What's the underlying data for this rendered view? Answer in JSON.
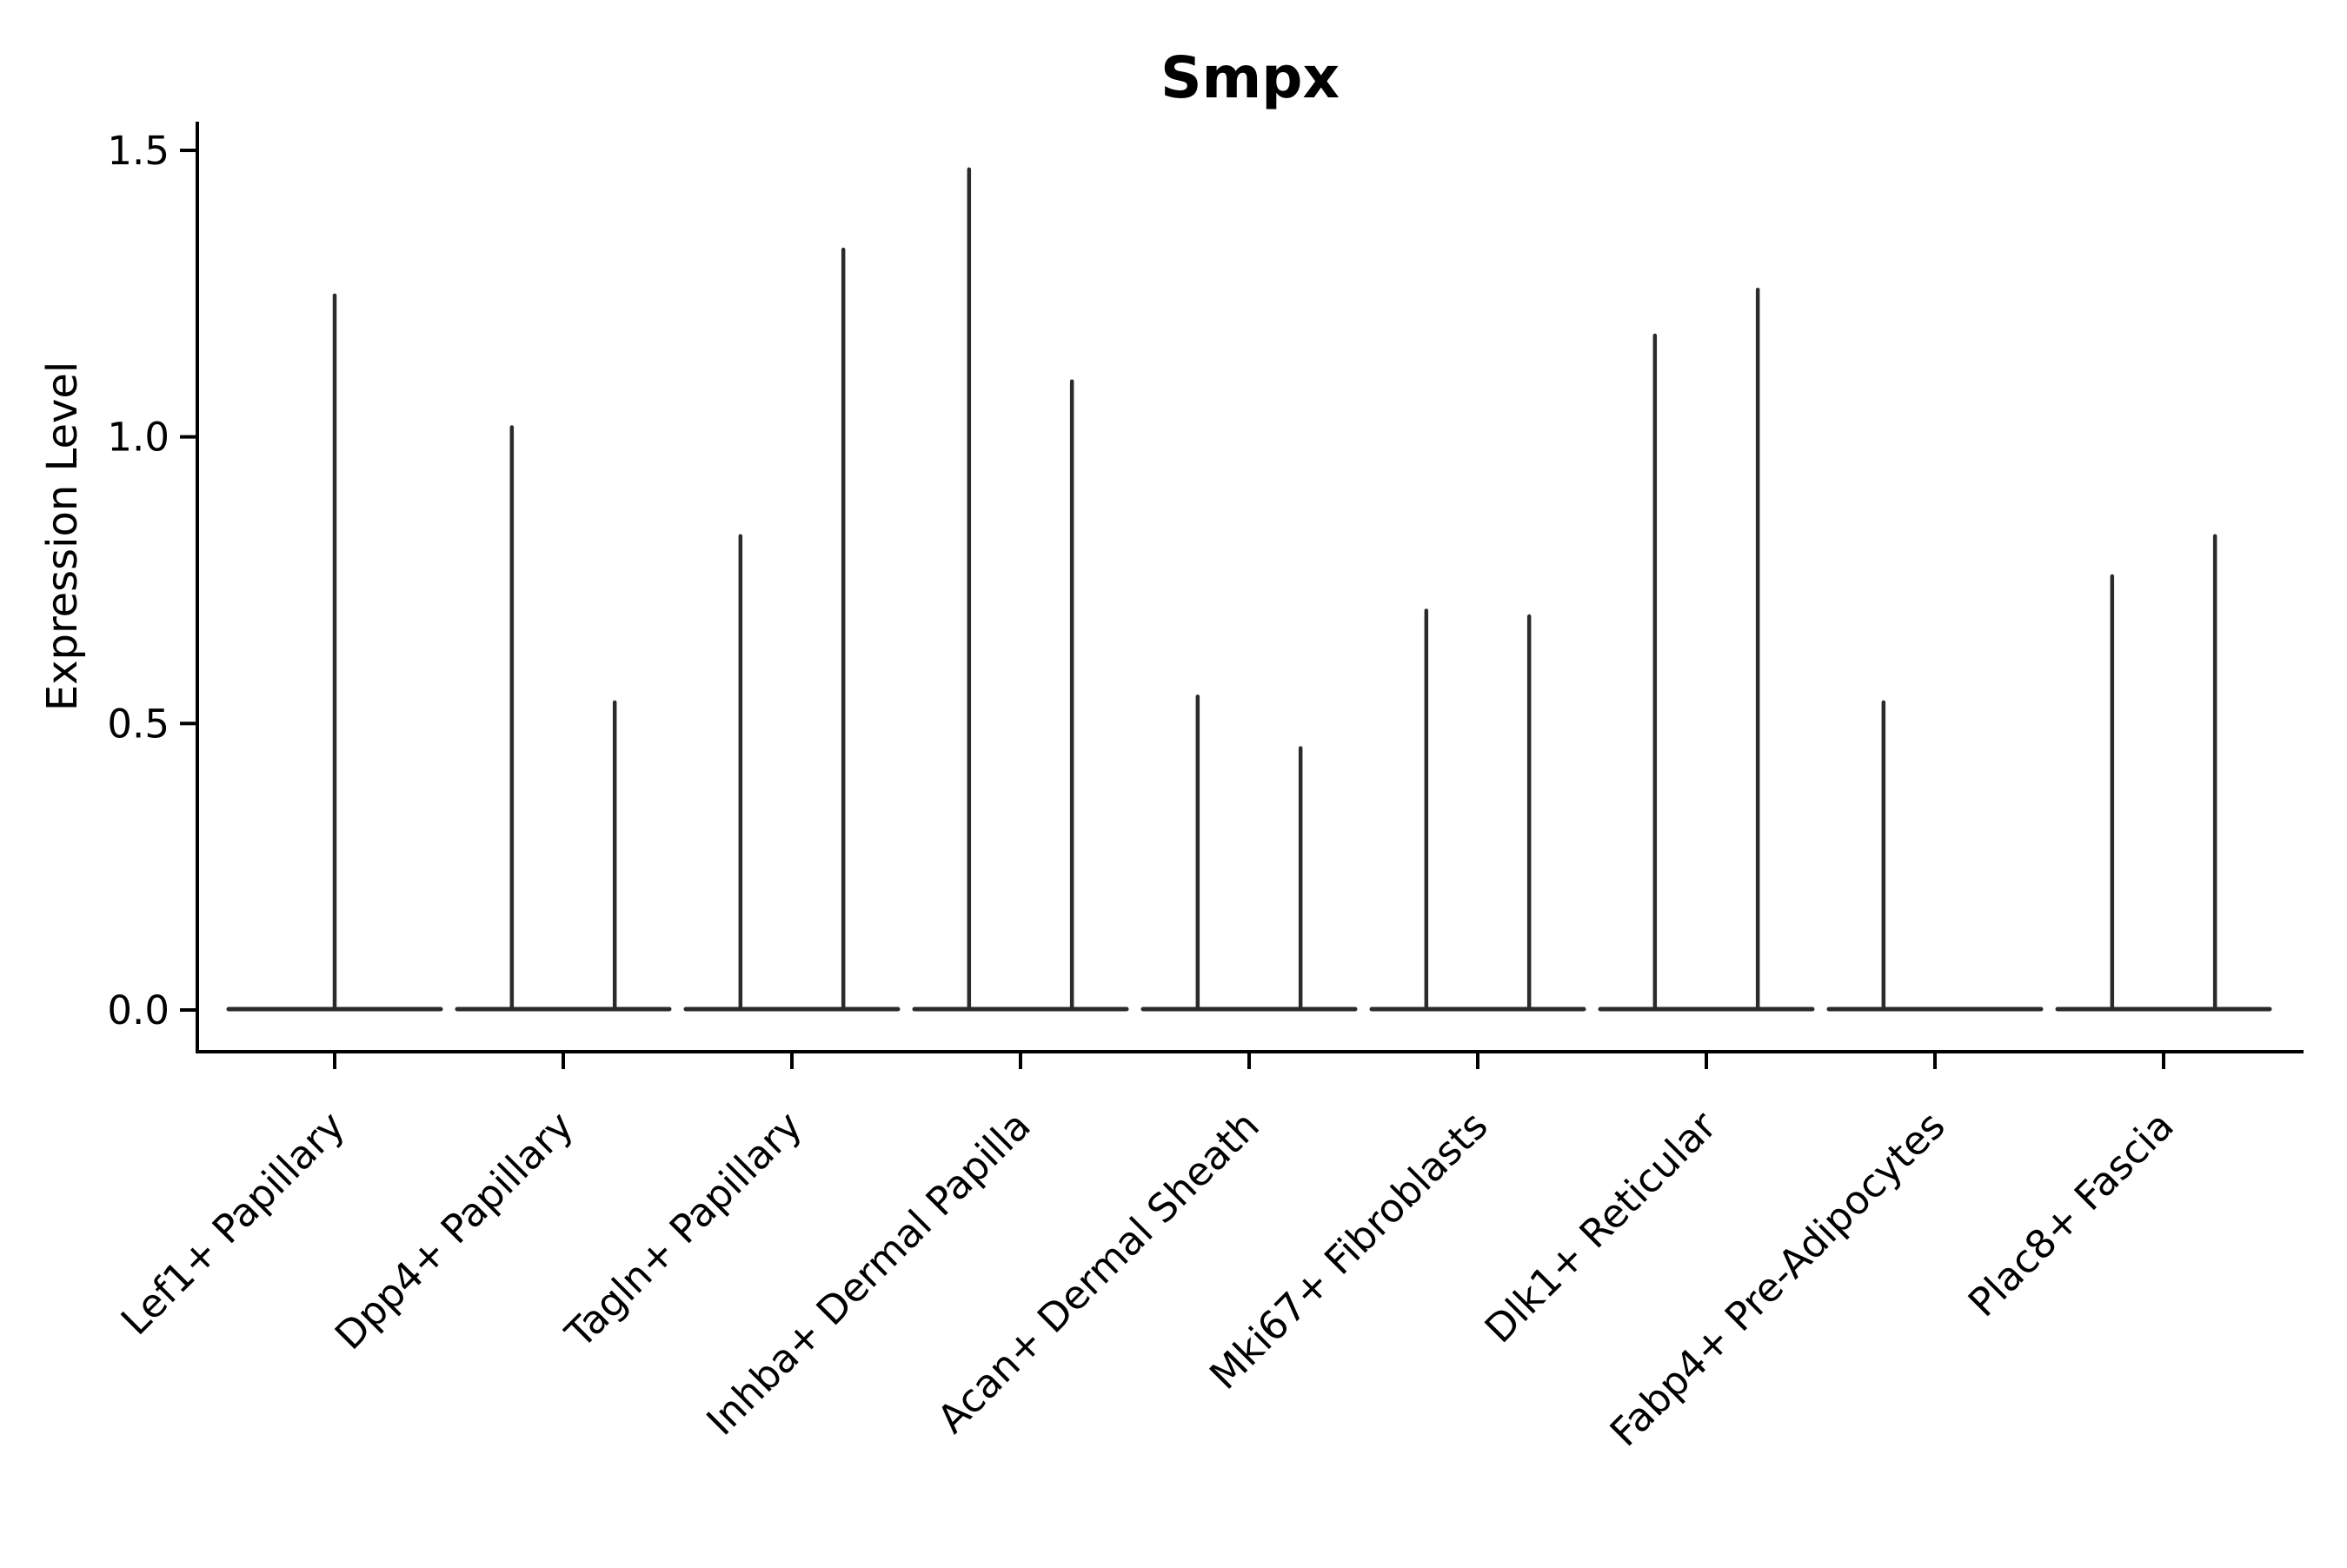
{
  "chart_data": {
    "type": "violin",
    "title": "Smpx",
    "ylabel": "Expression Level",
    "xlabel": "",
    "ylim": [
      -0.07,
      1.55
    ],
    "yticks": [
      0.0,
      0.5,
      1.0,
      1.5
    ],
    "ytick_labels": [
      "0.0",
      "0.5",
      "1.0",
      "1.5"
    ],
    "grid": false,
    "legend": null,
    "categories": [
      "Lef1+ Papillary",
      "Dpp4+ Papillary",
      "Tagln+ Papillary",
      "Inhba+ Dermal Papilla",
      "Acan+ Dermal Sheath",
      "Mki67+ Fibroblasts",
      "Dlk1+ Reticular",
      "Fabp4+ Pre-Adipocytes",
      "Plac8+ Fascia"
    ],
    "violins": [
      {
        "category": "Lef1+ Papillary",
        "baseline_value": 0.0,
        "spikes": [
          {
            "offset": 0.0,
            "max": 1.25
          }
        ]
      },
      {
        "category": "Dpp4+ Papillary",
        "baseline_value": 0.0,
        "spikes": [
          {
            "offset": -0.225,
            "max": 1.02
          },
          {
            "offset": 0.225,
            "max": 0.54
          }
        ]
      },
      {
        "category": "Tagln+ Papillary",
        "baseline_value": 0.0,
        "spikes": [
          {
            "offset": -0.225,
            "max": 0.83
          },
          {
            "offset": 0.225,
            "max": 1.33
          }
        ]
      },
      {
        "category": "Inhba+ Dermal Papilla",
        "baseline_value": 0.0,
        "spikes": [
          {
            "offset": -0.225,
            "max": 1.47
          },
          {
            "offset": 0.225,
            "max": 1.1
          }
        ]
      },
      {
        "category": "Acan+ Dermal Sheath",
        "baseline_value": 0.0,
        "spikes": [
          {
            "offset": -0.225,
            "max": 0.55
          },
          {
            "offset": 0.225,
            "max": 0.46
          }
        ]
      },
      {
        "category": "Mki67+ Fibroblasts",
        "baseline_value": 0.0,
        "spikes": [
          {
            "offset": -0.225,
            "max": 0.7
          },
          {
            "offset": 0.225,
            "max": 0.69
          }
        ]
      },
      {
        "category": "Dlk1+ Reticular",
        "baseline_value": 0.0,
        "spikes": [
          {
            "offset": -0.225,
            "max": 1.18
          },
          {
            "offset": 0.225,
            "max": 1.26
          }
        ]
      },
      {
        "category": "Fabp4+ Pre-Adipocytes",
        "baseline_value": 0.0,
        "spikes": [
          {
            "offset": -0.225,
            "max": 0.54
          }
        ]
      },
      {
        "category": "Plac8+ Fascia",
        "baseline_value": 0.0,
        "spikes": [
          {
            "offset": -0.225,
            "max": 0.76
          },
          {
            "offset": 0.225,
            "max": 0.83
          }
        ]
      }
    ],
    "colors": {
      "violin_line": "#2b2b2b",
      "axis": "#000000",
      "background": "#ffffff"
    }
  }
}
